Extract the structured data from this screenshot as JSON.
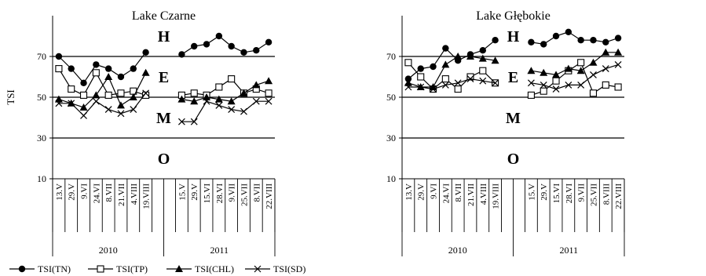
{
  "chart_data": [
    {
      "type": "line",
      "title": "Lake Czarne",
      "ylabel": "TSI",
      "xlabel": "",
      "ylim": [
        10,
        90
      ],
      "yticks": [
        10,
        30,
        50,
        70
      ],
      "reference_lines": [
        30,
        50,
        70
      ],
      "zones": [
        {
          "label": "H",
          "y": 80
        },
        {
          "label": "E",
          "y": 60
        },
        {
          "label": "M",
          "y": 40
        },
        {
          "label": "O",
          "y": 20
        }
      ],
      "groups": [
        {
          "label": "2010",
          "categories": [
            "13.V",
            "29.V",
            "9.VI",
            "24.VI",
            "8.VII",
            "21.VII",
            "4.VIII",
            "19.VIII"
          ]
        },
        {
          "label": "2011",
          "categories": [
            "15.V",
            "29.V",
            "15.VI",
            "28.VI",
            "9.VII",
            "25.VII",
            "8.VII",
            "22.VIII"
          ]
        }
      ],
      "series": [
        {
          "name": "TSI(TN)",
          "marker": "circle",
          "values": [
            [
              70,
              64,
              57,
              66,
              64,
              60,
              64,
              72
            ],
            [
              71,
              75,
              76,
              80,
              75,
              72,
              73,
              77
            ]
          ]
        },
        {
          "name": "TSI(TP)",
          "marker": "square",
          "values": [
            [
              64,
              54,
              51,
              62,
              51,
              52,
              53,
              51
            ],
            [
              51,
              52,
              51,
              55,
              59,
              52,
              54,
              52
            ]
          ]
        },
        {
          "name": "TSI(CHL)",
          "marker": "triangle",
          "values": [
            [
              49,
              47,
              45,
              51,
              60,
              46,
              50,
              62
            ],
            [
              49,
              48,
              50,
              49,
              48,
              52,
              56,
              58
            ]
          ]
        },
        {
          "name": "TSI(SD)",
          "marker": "cross",
          "values": [
            [
              47,
              47,
              41,
              48,
              44,
              42,
              44,
              52
            ],
            [
              38,
              38,
              48,
              46,
              44,
              43,
              48,
              48
            ]
          ]
        }
      ]
    },
    {
      "type": "line",
      "title": "Lake Głębokie",
      "ylabel": "",
      "xlabel": "",
      "ylim": [
        10,
        90
      ],
      "yticks": [
        10,
        30,
        50,
        70
      ],
      "reference_lines": [
        30,
        50,
        70
      ],
      "zones": [
        {
          "label": "H",
          "y": 80
        },
        {
          "label": "E",
          "y": 60
        },
        {
          "label": "M",
          "y": 40
        },
        {
          "label": "O",
          "y": 20
        }
      ],
      "groups": [
        {
          "label": "2010",
          "categories": [
            "13.V",
            "29.V",
            "9.VI",
            "24.VI",
            "8.VII",
            "21.VII",
            "4.VIII",
            "19.VIII"
          ]
        },
        {
          "label": "2011",
          "categories": [
            "15.V",
            "29.V",
            "15.VI",
            "28.VI",
            "9.VII",
            "25.VII",
            "8.VIII",
            "22.VIII"
          ]
        }
      ],
      "series": [
        {
          "name": "TSI(TN)",
          "marker": "circle",
          "values": [
            [
              59,
              64,
              65,
              74,
              68,
              71,
              73,
              78
            ],
            [
              77,
              76,
              80,
              82,
              78,
              78,
              77,
              79
            ]
          ]
        },
        {
          "name": "TSI(TP)",
          "marker": "square",
          "values": [
            [
              67,
              60,
              54,
              59,
              54,
              60,
              63,
              57
            ],
            [
              51,
              53,
              58,
              63,
              67,
              52,
              56,
              55
            ]
          ]
        },
        {
          "name": "TSI(CHL)",
          "marker": "triangle",
          "values": [
            [
              57,
              55,
              55,
              66,
              70,
              70,
              69,
              68
            ],
            [
              63,
              62,
              61,
              64,
              63,
              67,
              72,
              72
            ]
          ]
        },
        {
          "name": "TSI(SD)",
          "marker": "cross",
          "values": [
            [
              55,
              55,
              54,
              56,
              57,
              59,
              58,
              57
            ],
            [
              57,
              56,
              54,
              56,
              56,
              61,
              64,
              66
            ]
          ]
        }
      ]
    }
  ],
  "legend": [
    "TSI(TN)",
    "TSI(TP)",
    "TSI(CHL)",
    "TSI(SD)"
  ]
}
